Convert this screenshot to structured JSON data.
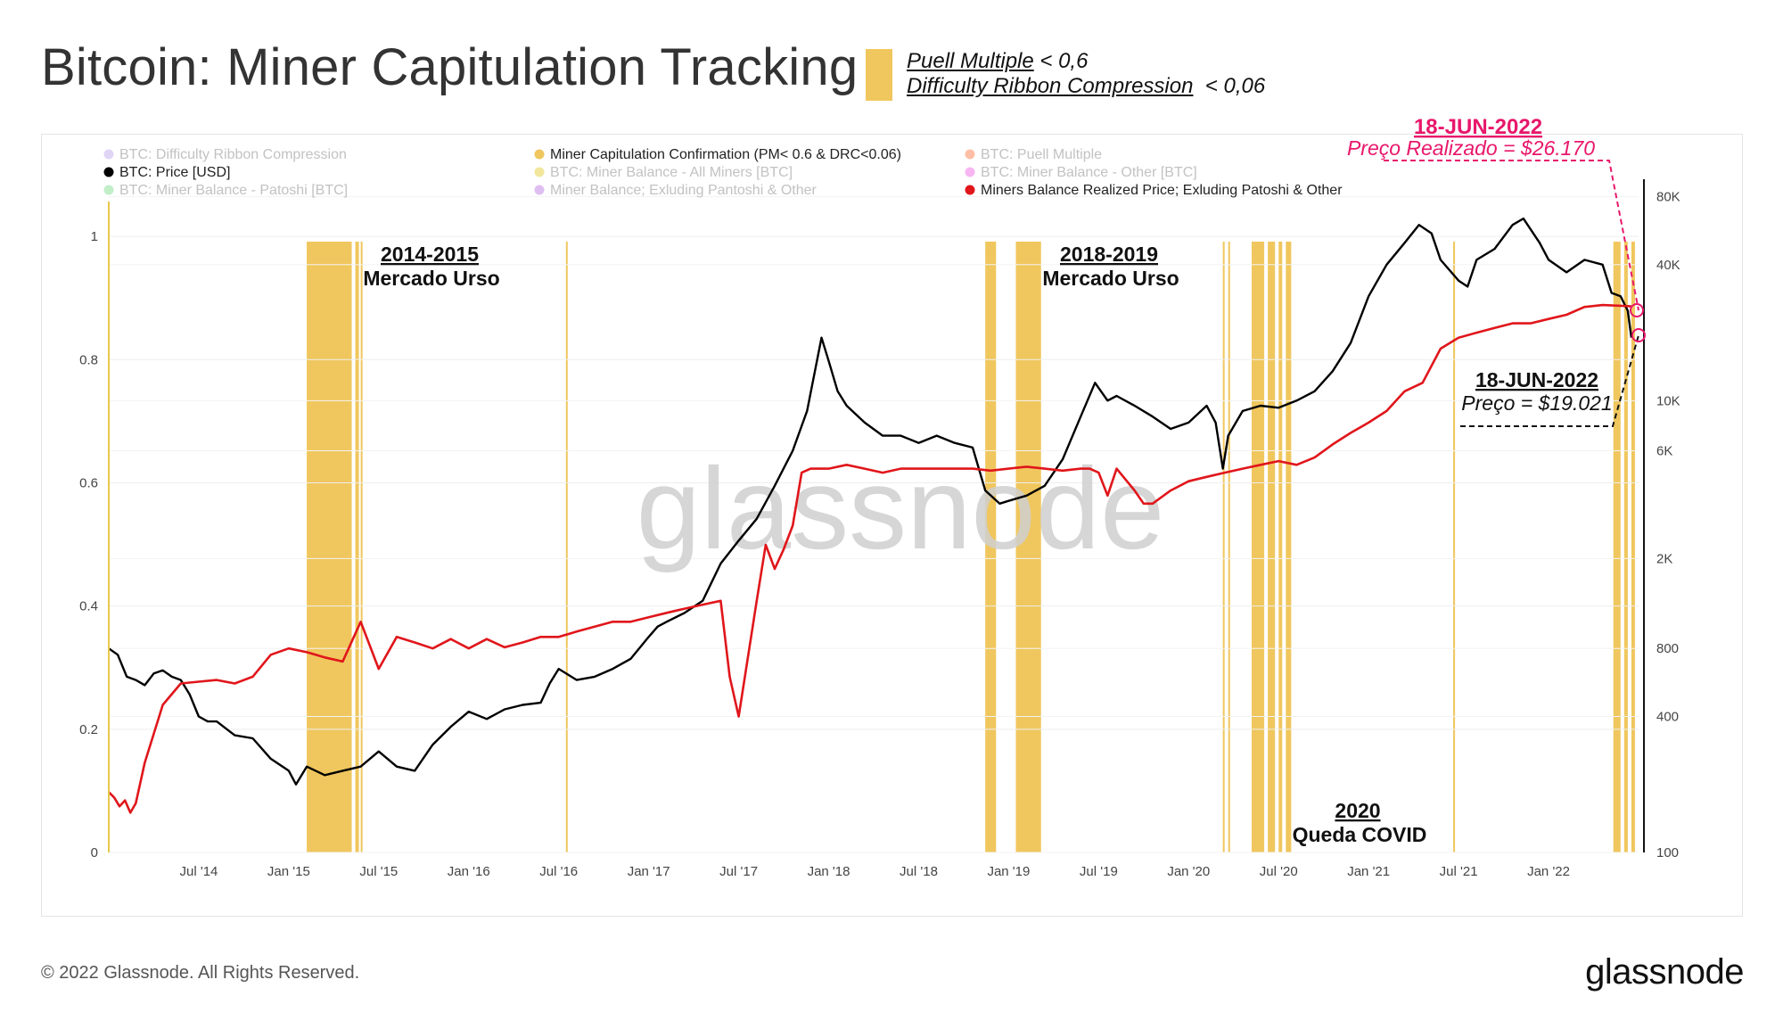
{
  "title": "Bitcoin: Miner Capitulation Tracking",
  "conditions": [
    {
      "metric": "Puell Multiple",
      "rule": " < 0,6"
    },
    {
      "metric": "Difficulty Ribbon Compression",
      "rule": "  < 0,06"
    }
  ],
  "footer": "© 2022 Glassnode. All Rights Reserved.",
  "brand": "glassnode",
  "watermark": "glassnode",
  "colors": {
    "price": "#000000",
    "realized_price": "#e0161b",
    "capitulation": "#f0c75e",
    "highlight": "#e8176b"
  },
  "annotations": {
    "bear_2014": {
      "line1": "2014-2015",
      "line2": "Mercado Urso"
    },
    "bear_2018": {
      "line1": "2018-2019",
      "line2": "Mercado Urso"
    },
    "covid_2020": {
      "line1": "2020",
      "line2": "Queda COVID"
    },
    "realized_callout": {
      "date": "18-JUN-2022",
      "text": "Preço Realizado = $26.170"
    },
    "price_callout": {
      "date": "18-JUN-2022",
      "text": "Preço = $19.021"
    }
  },
  "chart_data": {
    "type": "line",
    "legend": [
      {
        "label": "BTC: Difficulty Ribbon Compression",
        "color": "#c8b2ef",
        "active": false
      },
      {
        "label": "Miner Capitulation Confirmation (PM< 0.6 & DRC<0.06)",
        "color": "#f0c75e",
        "active": true
      },
      {
        "label": "BTC: Puell Multiple",
        "color": "#ff8a5c",
        "active": false
      },
      {
        "label": "BTC: Price [USD]",
        "color": "#000000",
        "active": true
      },
      {
        "label": "BTC: Miner Balance - All Miners [BTC]",
        "color": "#e6d24a",
        "active": false
      },
      {
        "label": "BTC: Miner Balance - Other [BTC]",
        "color": "#f07ae8",
        "active": false
      },
      {
        "label": "BTC: Miner Balance - Patoshi [BTC]",
        "color": "#8fe09a",
        "active": false
      },
      {
        "label": "Miner Balance; Exluding Pantoshi & Other",
        "color": "#c58be8",
        "active": false
      },
      {
        "label": "Miners Balance Realized Price; Exluding Patoshi & Other",
        "color": "#e0161b",
        "active": true
      }
    ],
    "x_ticks": [
      "Jul '14",
      "Jan '15",
      "Jul '15",
      "Jan '16",
      "Jul '16",
      "Jan '17",
      "Jul '17",
      "Jan '18",
      "Jul '18",
      "Jan '19",
      "Jul '19",
      "Jan '20",
      "Jul '20",
      "Jan '21",
      "Jul '21",
      "Jan '22"
    ],
    "x_range": [
      2014.0,
      2022.5
    ],
    "y_left": {
      "range": [
        0,
        1.1
      ],
      "ticks": [
        "0",
        "0.2",
        "0.4",
        "0.6",
        "0.8",
        "1"
      ],
      "tick_values": [
        0,
        0.2,
        0.4,
        0.6,
        0.8,
        1.0
      ]
    },
    "y_right": {
      "scale": "log",
      "range": [
        100,
        100000
      ],
      "ticks": [
        "100",
        "400",
        "800",
        "2K",
        "6K",
        "10K",
        "40K",
        "80K"
      ],
      "tick_values": [
        100,
        400,
        800,
        2000,
        6000,
        10000,
        40000,
        80000
      ]
    },
    "capitulation_periods": [
      [
        2015.1,
        2015.35
      ],
      [
        2015.37,
        2015.39
      ],
      [
        2015.4,
        2015.41
      ],
      [
        2016.54,
        2016.55
      ],
      [
        2018.87,
        2018.93
      ],
      [
        2019.04,
        2019.18
      ],
      [
        2020.19,
        2020.2
      ],
      [
        2020.22,
        2020.23
      ],
      [
        2020.35,
        2020.42
      ],
      [
        2020.44,
        2020.48
      ],
      [
        2020.5,
        2020.52
      ],
      [
        2020.54,
        2020.57
      ],
      [
        2021.47,
        2021.48
      ],
      [
        2022.36,
        2022.4
      ],
      [
        2022.42,
        2022.44
      ],
      [
        2022.46,
        2022.48
      ]
    ],
    "series": [
      {
        "name": "BTC: Price [USD]",
        "color": "#000000",
        "x": [
          2014.0,
          2014.05,
          2014.1,
          2014.15,
          2014.2,
          2014.25,
          2014.3,
          2014.35,
          2014.4,
          2014.45,
          2014.5,
          2014.55,
          2014.6,
          2014.7,
          2014.8,
          2014.9,
          2015.0,
          2015.04,
          2015.1,
          2015.2,
          2015.3,
          2015.4,
          2015.5,
          2015.6,
          2015.7,
          2015.8,
          2015.9,
          2016.0,
          2016.1,
          2016.2,
          2016.3,
          2016.4,
          2016.45,
          2016.5,
          2016.6,
          2016.7,
          2016.8,
          2016.9,
          2017.0,
          2017.05,
          2017.1,
          2017.2,
          2017.3,
          2017.4,
          2017.5,
          2017.6,
          2017.7,
          2017.8,
          2017.88,
          2017.96,
          2018.0,
          2018.05,
          2018.1,
          2018.2,
          2018.3,
          2018.4,
          2018.5,
          2018.6,
          2018.7,
          2018.8,
          2018.87,
          2018.95,
          2019.0,
          2019.1,
          2019.2,
          2019.3,
          2019.4,
          2019.48,
          2019.55,
          2019.6,
          2019.7,
          2019.8,
          2019.9,
          2020.0,
          2020.1,
          2020.15,
          2020.19,
          2020.22,
          2020.3,
          2020.4,
          2020.5,
          2020.6,
          2020.7,
          2020.8,
          2020.9,
          2021.0,
          2021.1,
          2021.2,
          2021.28,
          2021.35,
          2021.4,
          2021.5,
          2021.55,
          2021.6,
          2021.7,
          2021.8,
          2021.86,
          2021.95,
          2022.0,
          2022.1,
          2022.2,
          2022.3,
          2022.35,
          2022.4,
          2022.44,
          2022.46
        ],
        "y": [
          800,
          750,
          600,
          580,
          550,
          620,
          640,
          600,
          580,
          500,
          400,
          380,
          380,
          330,
          320,
          260,
          230,
          200,
          240,
          220,
          230,
          240,
          280,
          240,
          230,
          300,
          360,
          420,
          390,
          430,
          450,
          460,
          560,
          650,
          580,
          600,
          650,
          720,
          900,
          1000,
          1050,
          1150,
          1300,
          1900,
          2400,
          3000,
          4200,
          6000,
          9000,
          19000,
          15000,
          11000,
          9500,
          8000,
          7000,
          7000,
          6500,
          7000,
          6500,
          6200,
          4000,
          3500,
          3600,
          3800,
          4200,
          5500,
          8500,
          12000,
          10000,
          10500,
          9500,
          8500,
          7500,
          8000,
          9500,
          8000,
          5000,
          7000,
          9000,
          9500,
          9300,
          10000,
          11000,
          13500,
          18000,
          29000,
          40000,
          50000,
          60000,
          55000,
          42000,
          34000,
          32000,
          42000,
          47000,
          60000,
          64000,
          50000,
          42000,
          37000,
          42000,
          40000,
          30000,
          29000,
          25000,
          19021
        ]
      },
      {
        "name": "Miners Balance Realized Price; Exluding Patoshi & Other",
        "color": "#e0161b",
        "x": [
          2014.0,
          2014.03,
          2014.06,
          2014.09,
          2014.12,
          2014.15,
          2014.2,
          2014.3,
          2014.4,
          2014.5,
          2014.6,
          2014.7,
          2014.8,
          2014.9,
          2015.0,
          2015.1,
          2015.2,
          2015.3,
          2015.4,
          2015.5,
          2015.6,
          2015.7,
          2015.8,
          2015.9,
          2016.0,
          2016.1,
          2016.2,
          2016.3,
          2016.4,
          2016.5,
          2016.6,
          2016.7,
          2016.8,
          2016.9,
          2017.0,
          2017.1,
          2017.2,
          2017.3,
          2017.4,
          2017.45,
          2017.5,
          2017.6,
          2017.65,
          2017.7,
          2017.75,
          2017.8,
          2017.85,
          2017.9,
          2018.0,
          2018.1,
          2018.2,
          2018.3,
          2018.4,
          2018.5,
          2018.6,
          2018.7,
          2018.8,
          2018.9,
          2019.0,
          2019.1,
          2019.2,
          2019.3,
          2019.4,
          2019.45,
          2019.5,
          2019.55,
          2019.6,
          2019.7,
          2019.75,
          2019.8,
          2019.9,
          2020.0,
          2020.1,
          2020.2,
          2020.3,
          2020.4,
          2020.5,
          2020.6,
          2020.7,
          2020.8,
          2020.9,
          2021.0,
          2021.1,
          2021.2,
          2021.3,
          2021.4,
          2021.5,
          2021.6,
          2021.7,
          2021.8,
          2021.9,
          2022.0,
          2022.1,
          2022.2,
          2022.3,
          2022.4,
          2022.46
        ],
        "y": [
          185,
          175,
          160,
          170,
          150,
          165,
          250,
          450,
          560,
          570,
          580,
          560,
          600,
          750,
          800,
          770,
          730,
          700,
          1050,
          650,
          900,
          850,
          800,
          880,
          800,
          880,
          810,
          850,
          900,
          900,
          950,
          1000,
          1050,
          1050,
          1100,
          1150,
          1200,
          1250,
          1300,
          600,
          400,
          1300,
          2300,
          1800,
          2200,
          2800,
          4800,
          5000,
          5000,
          5200,
          5000,
          4800,
          5000,
          5000,
          5000,
          5000,
          5000,
          4900,
          5000,
          5100,
          5000,
          4900,
          5000,
          5000,
          4800,
          3800,
          5000,
          4000,
          3500,
          3500,
          4000,
          4400,
          4600,
          4800,
          5000,
          5200,
          5400,
          5200,
          5600,
          6400,
          7200,
          8000,
          9000,
          11000,
          12000,
          17000,
          19000,
          20000,
          21000,
          22000,
          22000,
          23000,
          24000,
          26000,
          26500,
          26300,
          26170
        ]
      }
    ]
  }
}
